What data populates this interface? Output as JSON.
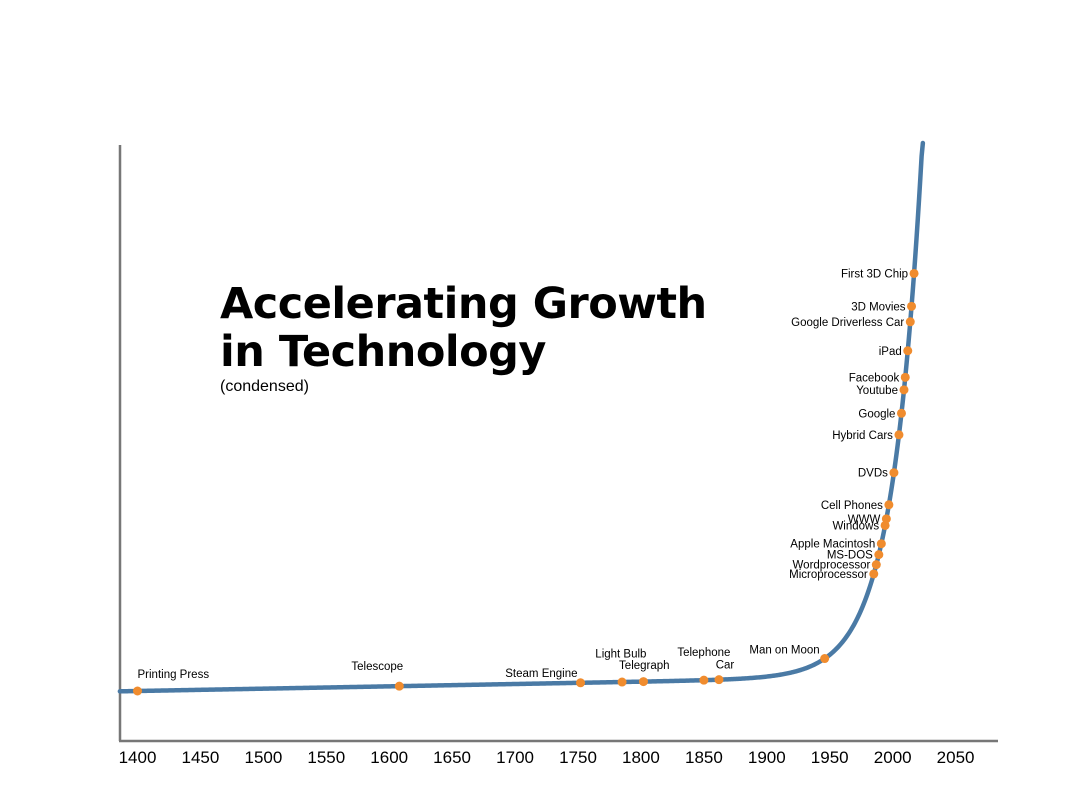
{
  "title": {
    "line1": "Accelerating Growth",
    "line2": "in Technology",
    "subtitle": "(condensed)"
  },
  "colors": {
    "curve": "#4a7aa5",
    "point": "#f08c2e",
    "axis": "#777777"
  },
  "chart_data": {
    "type": "line",
    "title": "Accelerating Growth in Technology",
    "subtitle": "(condensed)",
    "xlabel": "",
    "ylabel": "",
    "xlim": [
      1390,
      2085
    ],
    "grid": false,
    "x_ticks": [
      1400,
      1450,
      1500,
      1550,
      1600,
      1650,
      1700,
      1750,
      1800,
      1850,
      1900,
      1950,
      2000,
      2050
    ],
    "events": [
      {
        "label": "Printing Press",
        "year": 1400
      },
      {
        "label": "Telescope",
        "year": 1608
      },
      {
        "label": "Steam Engine",
        "year": 1752
      },
      {
        "label": "Telegraph",
        "year": 1785
      },
      {
        "label": "Light Bulb",
        "year": 1802
      },
      {
        "label": "Telephone",
        "year": 1850
      },
      {
        "label": "Car",
        "year": 1862
      },
      {
        "label": "Man on Moon",
        "year": 1946
      },
      {
        "label": "Microprocessor",
        "year": 1985
      },
      {
        "label": "Wordprocessor",
        "year": 1987
      },
      {
        "label": "MS-DOS",
        "year": 1989
      },
      {
        "label": "Apple Macintosh",
        "year": 1991
      },
      {
        "label": "Windows",
        "year": 1994
      },
      {
        "label": "WWW",
        "year": 1995
      },
      {
        "label": "Cell Phones",
        "year": 1997
      },
      {
        "label": "DVDs",
        "year": 2001
      },
      {
        "label": "Hybrid Cars",
        "year": 2005
      },
      {
        "label": "Google",
        "year": 2007
      },
      {
        "label": "Youtube",
        "year": 2009
      },
      {
        "label": "Facebook",
        "year": 2010
      },
      {
        "label": "iPad",
        "year": 2012
      },
      {
        "label": "Google Driverless Car",
        "year": 2014
      },
      {
        "label": "3D Movies",
        "year": 2015
      },
      {
        "label": "First 3D Chip",
        "year": 2017
      }
    ]
  }
}
